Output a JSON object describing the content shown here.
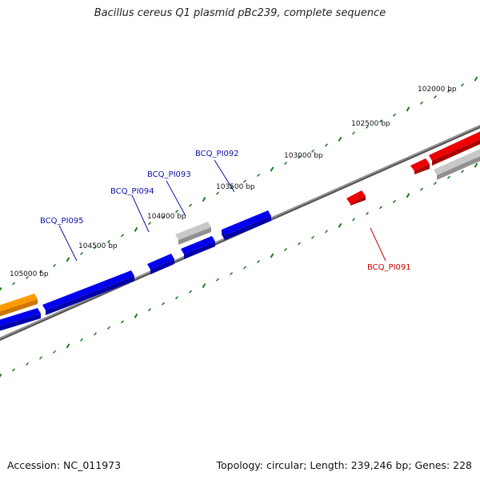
{
  "title": "Bacillus cereus Q1 plasmid pBc239, complete sequence",
  "footer": {
    "accession": "Accession: NC_011973",
    "summary": "Topology: circular; Length: 239,246 bp; Genes: 228"
  },
  "colors": {
    "backbone": "#808080",
    "tick": "#1a7a1a",
    "gene_blue": "#0000ee",
    "gene_red": "#ee0000",
    "gene_gray": "#b0b0b0",
    "gene_orange": "#ff9900",
    "label_blue": "#1010aa",
    "label_red": "#cc0000"
  },
  "position_labels": [
    {
      "text": "102000 bp"
    },
    {
      "text": "102500 bp"
    },
    {
      "text": "103000 bp"
    },
    {
      "text": "103500 bp"
    },
    {
      "text": "104000 bp"
    },
    {
      "text": "104500 bp"
    },
    {
      "text": "105000 bp"
    }
  ],
  "gene_labels": [
    {
      "text": "BCQ_PI092",
      "color": "blue"
    },
    {
      "text": "BCQ_PI093",
      "color": "blue"
    },
    {
      "text": "BCQ_PI094",
      "color": "blue"
    },
    {
      "text": "BCQ_PI095",
      "color": "blue"
    },
    {
      "text": "BCQ_PI091",
      "color": "red"
    }
  ]
}
